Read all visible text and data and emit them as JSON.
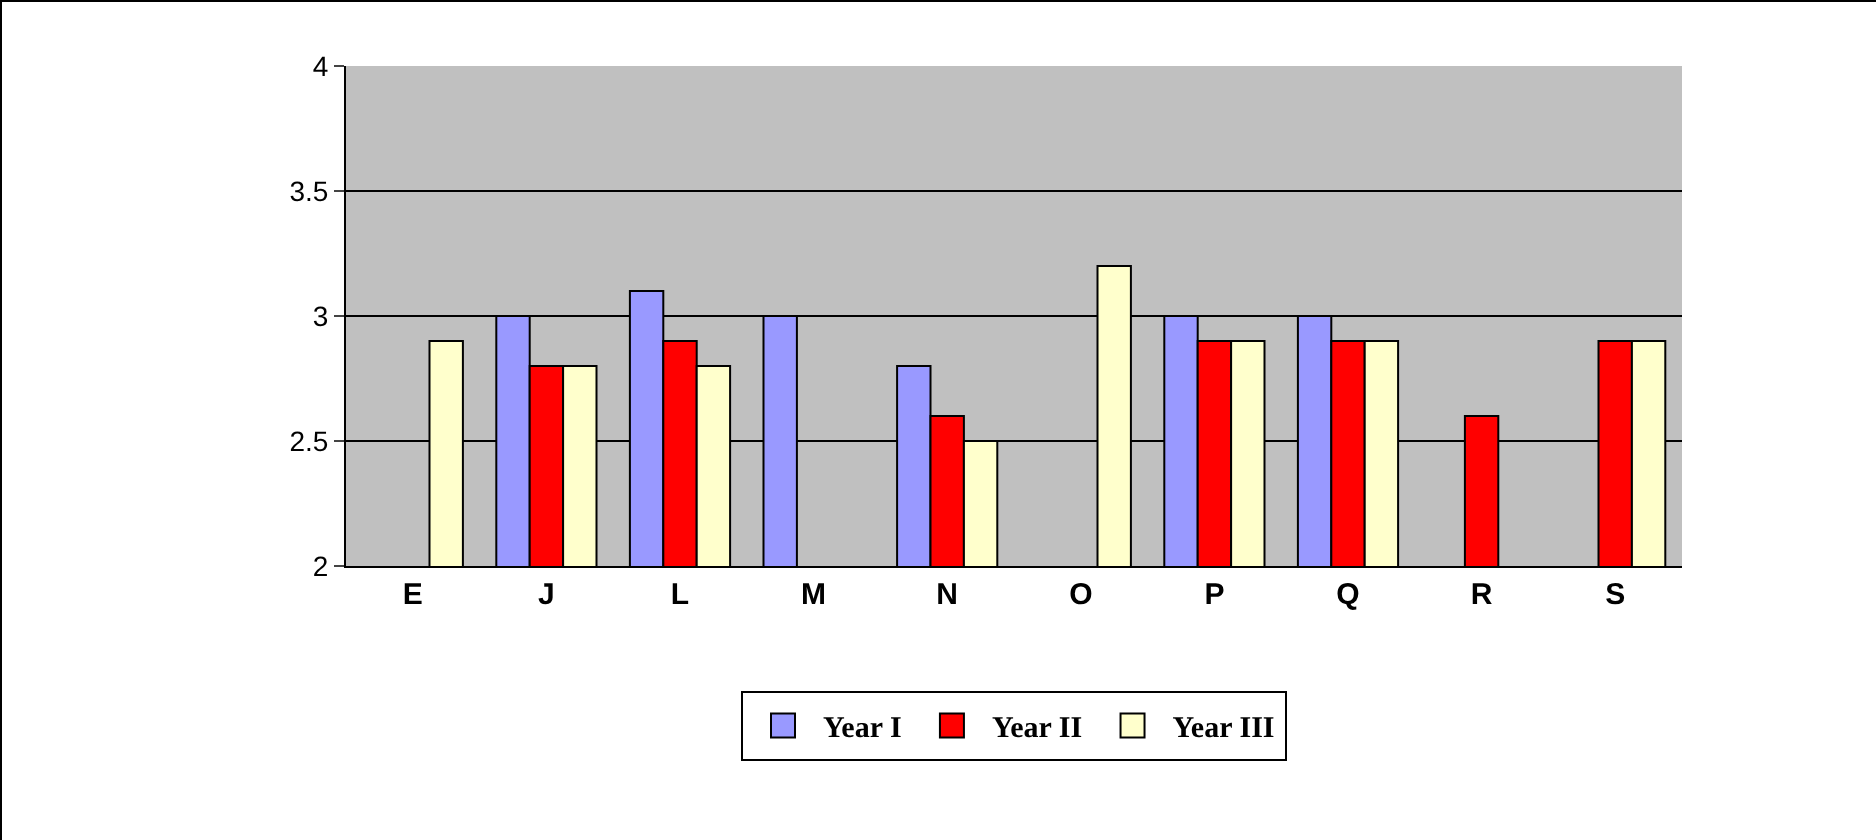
{
  "chart_data": {
    "type": "bar",
    "categories": [
      "E",
      "J",
      "L",
      "M",
      "N",
      "O",
      "P",
      "Q",
      "R",
      "S"
    ],
    "series": [
      {
        "name": "Year I",
        "color": "#9999ff",
        "values": [
          null,
          3.0,
          3.1,
          3.0,
          2.8,
          null,
          3.0,
          3.0,
          null,
          null
        ]
      },
      {
        "name": "Year II",
        "color": "#ff0000",
        "values": [
          null,
          2.8,
          2.9,
          null,
          2.6,
          null,
          2.9,
          2.9,
          2.6,
          2.9
        ]
      },
      {
        "name": "Year III",
        "color": "#ffffcc",
        "values": [
          2.9,
          2.8,
          2.8,
          null,
          2.5,
          3.2,
          2.9,
          2.9,
          null,
          2.9
        ]
      }
    ],
    "ylim": [
      2,
      4
    ],
    "yticks": [
      2,
      2.5,
      3,
      3.5,
      4
    ],
    "grid": "y",
    "legend": "bottom"
  }
}
